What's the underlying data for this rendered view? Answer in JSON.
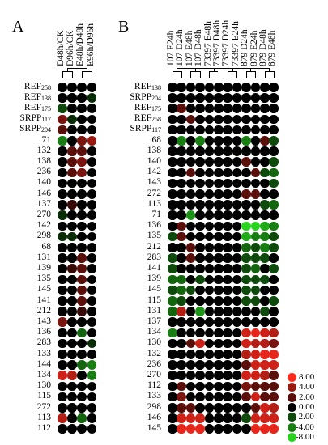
{
  "panels": [
    {
      "letter": "A",
      "columns": [
        "D48h/CK",
        "D96h/CK",
        "E48h/D48h",
        "E96h/D96h"
      ],
      "rows": [
        [
          "REF",
          "258"
        ],
        [
          "REF",
          "138"
        ],
        [
          "REF",
          "175"
        ],
        [
          "SRPP",
          "117"
        ],
        [
          "SRPP",
          "204"
        ],
        [
          "71",
          ""
        ],
        [
          "132",
          ""
        ],
        [
          "138",
          ""
        ],
        [
          "236",
          ""
        ],
        [
          "140",
          ""
        ],
        [
          "146",
          ""
        ],
        [
          "137",
          ""
        ],
        [
          "270",
          ""
        ],
        [
          "142",
          ""
        ],
        [
          "298",
          ""
        ],
        [
          "68",
          ""
        ],
        [
          "131",
          ""
        ],
        [
          "139",
          ""
        ],
        [
          "135",
          ""
        ],
        [
          "145",
          ""
        ],
        [
          "141",
          ""
        ],
        [
          "212",
          ""
        ],
        [
          "143",
          ""
        ],
        [
          "136",
          ""
        ],
        [
          "283",
          ""
        ],
        [
          "133",
          ""
        ],
        [
          "144",
          ""
        ],
        [
          "134",
          ""
        ],
        [
          "130",
          ""
        ],
        [
          "115",
          ""
        ],
        [
          "272",
          ""
        ],
        [
          "113",
          ""
        ],
        [
          "112",
          ""
        ]
      ],
      "values": [
        [
          0,
          0,
          0,
          0
        ],
        [
          0,
          0,
          0,
          -1
        ],
        [
          -2,
          0,
          0,
          0
        ],
        [
          3,
          -1,
          0,
          0
        ],
        [
          2,
          0,
          0,
          0
        ],
        [
          -4,
          0,
          3,
          4
        ],
        [
          0,
          2,
          2,
          0
        ],
        [
          0,
          2,
          3,
          0
        ],
        [
          0,
          2,
          3,
          0
        ],
        [
          0,
          0,
          0,
          0
        ],
        [
          0,
          0,
          0,
          0
        ],
        [
          0,
          1,
          0,
          0
        ],
        [
          -1,
          0,
          0,
          0
        ],
        [
          0,
          0,
          0,
          0
        ],
        [
          -1,
          -1,
          0,
          0
        ],
        [
          0,
          0,
          0,
          0
        ],
        [
          0,
          0,
          2,
          0
        ],
        [
          0,
          1,
          2,
          0
        ],
        [
          0,
          0,
          2,
          0
        ],
        [
          0,
          0,
          2,
          0
        ],
        [
          0,
          0,
          2,
          0
        ],
        [
          0,
          0,
          1,
          0
        ],
        [
          3,
          0,
          0,
          0
        ],
        [
          0,
          0,
          -3,
          0
        ],
        [
          0,
          0,
          0,
          -1
        ],
        [
          0,
          0,
          0,
          0
        ],
        [
          0,
          0,
          -3,
          -4
        ],
        [
          6,
          5,
          0,
          -4
        ],
        [
          0,
          0,
          0,
          0
        ],
        [
          0,
          0,
          0,
          0
        ],
        [
          0,
          0,
          0,
          0
        ],
        [
          5,
          0,
          -3,
          0
        ],
        [
          0,
          0,
          0,
          0
        ]
      ]
    },
    {
      "letter": "B",
      "columns": [
        "107 E24h",
        "107 D24h",
        "107 E48h",
        "107 D48h",
        "73397 E48h",
        "73397 D48h",
        "73397 D24h",
        "73397 E24h",
        "879 D24h",
        "879 E24h",
        "879 D48h",
        "879 E48h"
      ],
      "rows": [
        [
          "REF",
          "138"
        ],
        [
          "SRPP",
          "204"
        ],
        [
          "REF",
          "175"
        ],
        [
          "REF",
          "258"
        ],
        [
          "SRPP",
          "117"
        ],
        [
          "68",
          ""
        ],
        [
          "138",
          ""
        ],
        [
          "140",
          ""
        ],
        [
          "142",
          ""
        ],
        [
          "143",
          ""
        ],
        [
          "272",
          ""
        ],
        [
          "113",
          ""
        ],
        [
          "71",
          ""
        ],
        [
          "136",
          ""
        ],
        [
          "135",
          ""
        ],
        [
          "212",
          ""
        ],
        [
          "283",
          ""
        ],
        [
          "141",
          ""
        ],
        [
          "139",
          ""
        ],
        [
          "145",
          ""
        ],
        [
          "115",
          ""
        ],
        [
          "131",
          ""
        ],
        [
          "137",
          ""
        ],
        [
          "134",
          ""
        ],
        [
          "130",
          ""
        ],
        [
          "132",
          ""
        ],
        [
          "236",
          ""
        ],
        [
          "270",
          ""
        ],
        [
          "112",
          ""
        ],
        [
          "133",
          ""
        ],
        [
          "298",
          ""
        ],
        [
          "146",
          ""
        ],
        [
          "145",
          ""
        ]
      ],
      "values": [
        [
          0,
          0,
          0,
          0,
          0,
          0,
          0,
          0,
          0,
          0,
          0,
          0
        ],
        [
          0,
          0,
          0,
          0,
          0,
          0,
          0,
          0,
          0,
          0,
          0,
          0
        ],
        [
          0,
          2,
          0,
          0,
          0,
          0,
          0,
          0,
          0,
          0,
          0,
          0
        ],
        [
          0,
          0,
          2,
          0,
          0,
          0,
          0,
          0,
          0,
          0,
          0,
          0
        ],
        [
          0,
          0,
          0,
          0,
          0,
          0,
          0,
          0,
          0,
          0,
          0,
          0
        ],
        [
          0,
          -4,
          0,
          -4,
          0,
          0,
          0,
          0,
          -4,
          0,
          2,
          -2
        ],
        [
          0,
          0,
          0,
          0,
          0,
          0,
          0,
          0,
          0,
          0,
          0,
          0
        ],
        [
          0,
          0,
          0,
          0,
          0,
          0,
          0,
          0,
          2,
          0,
          0,
          -2
        ],
        [
          0,
          0,
          2,
          0,
          0,
          0,
          0,
          0,
          0,
          2,
          -2,
          -3
        ],
        [
          0,
          0,
          0,
          0,
          0,
          0,
          0,
          0,
          0,
          0,
          0,
          -2
        ],
        [
          0,
          0,
          0,
          0,
          0,
          0,
          0,
          0,
          2,
          2,
          0,
          0
        ],
        [
          0,
          0,
          0,
          0,
          0,
          0,
          0,
          0,
          0,
          0,
          -2,
          -3
        ],
        [
          0,
          0,
          -5,
          0,
          0,
          0,
          0,
          0,
          0,
          0,
          0,
          0
        ],
        [
          0,
          2,
          0,
          0,
          0,
          0,
          0,
          0,
          -8,
          -8,
          -6,
          -4
        ],
        [
          -2,
          2,
          0,
          0,
          0,
          0,
          0,
          0,
          -6,
          -4,
          -4,
          -2
        ],
        [
          0,
          0,
          2,
          0,
          0,
          0,
          0,
          0,
          -3,
          -2,
          -4,
          -2
        ],
        [
          -2,
          0,
          2,
          0,
          0,
          0,
          0,
          0,
          -2,
          -2,
          -2,
          0
        ],
        [
          -2,
          0,
          0,
          0,
          0,
          0,
          0,
          0,
          -2,
          -3,
          0,
          -2
        ],
        [
          -3,
          -3,
          0,
          -2,
          0,
          0,
          0,
          0,
          -2,
          -2,
          -2,
          0
        ],
        [
          -2,
          -3,
          -2,
          0,
          0,
          0,
          0,
          0,
          -2,
          -2,
          0,
          0
        ],
        [
          -3,
          -2,
          0,
          0,
          0,
          0,
          0,
          0,
          -2,
          -2,
          0,
          -2
        ],
        [
          -3,
          5,
          0,
          -5,
          0,
          0,
          0,
          0,
          0,
          0,
          -2,
          0
        ],
        [
          0,
          0,
          0,
          0,
          0,
          0,
          0,
          0,
          0,
          0,
          0,
          0
        ],
        [
          -4,
          0,
          0,
          0,
          0,
          0,
          0,
          0,
          6,
          7,
          6,
          5
        ],
        [
          0,
          0,
          2,
          6,
          0,
          0,
          0,
          0,
          6,
          5,
          5,
          3
        ],
        [
          0,
          0,
          0,
          0,
          0,
          0,
          0,
          0,
          5,
          6,
          7,
          7
        ],
        [
          0,
          0,
          0,
          0,
          0,
          0,
          0,
          0,
          2,
          6,
          6,
          6
        ],
        [
          0,
          0,
          0,
          0,
          0,
          0,
          0,
          0,
          6,
          6,
          5,
          2
        ],
        [
          0,
          2,
          0,
          0,
          0,
          0,
          0,
          0,
          3,
          2,
          2,
          2
        ],
        [
          0,
          3,
          0,
          0,
          0,
          0,
          0,
          0,
          2,
          6,
          2,
          2
        ],
        [
          0,
          2,
          2,
          0,
          0,
          0,
          0,
          0,
          0,
          2,
          6,
          5
        ],
        [
          0,
          6,
          6,
          6,
          0,
          0,
          0,
          0,
          -2,
          6,
          6,
          6
        ],
        [
          0,
          7,
          7,
          7,
          0,
          0,
          0,
          0,
          0,
          7,
          7,
          7
        ]
      ]
    }
  ],
  "legend": {
    "entries": [
      {
        "label": "8.00",
        "value": 8
      },
      {
        "label": "4.00",
        "value": 4
      },
      {
        "label": "2.00",
        "value": 2
      },
      {
        "label": "0.00",
        "value": 0
      },
      {
        "label": "-2.00",
        "value": -2
      },
      {
        "label": "-4.00",
        "value": -4
      },
      {
        "label": "-8.00",
        "value": -8
      }
    ]
  },
  "colors": {
    "zero": "#000000",
    "red_max": "#ff2a1e",
    "green_max": "#28d21e"
  }
}
